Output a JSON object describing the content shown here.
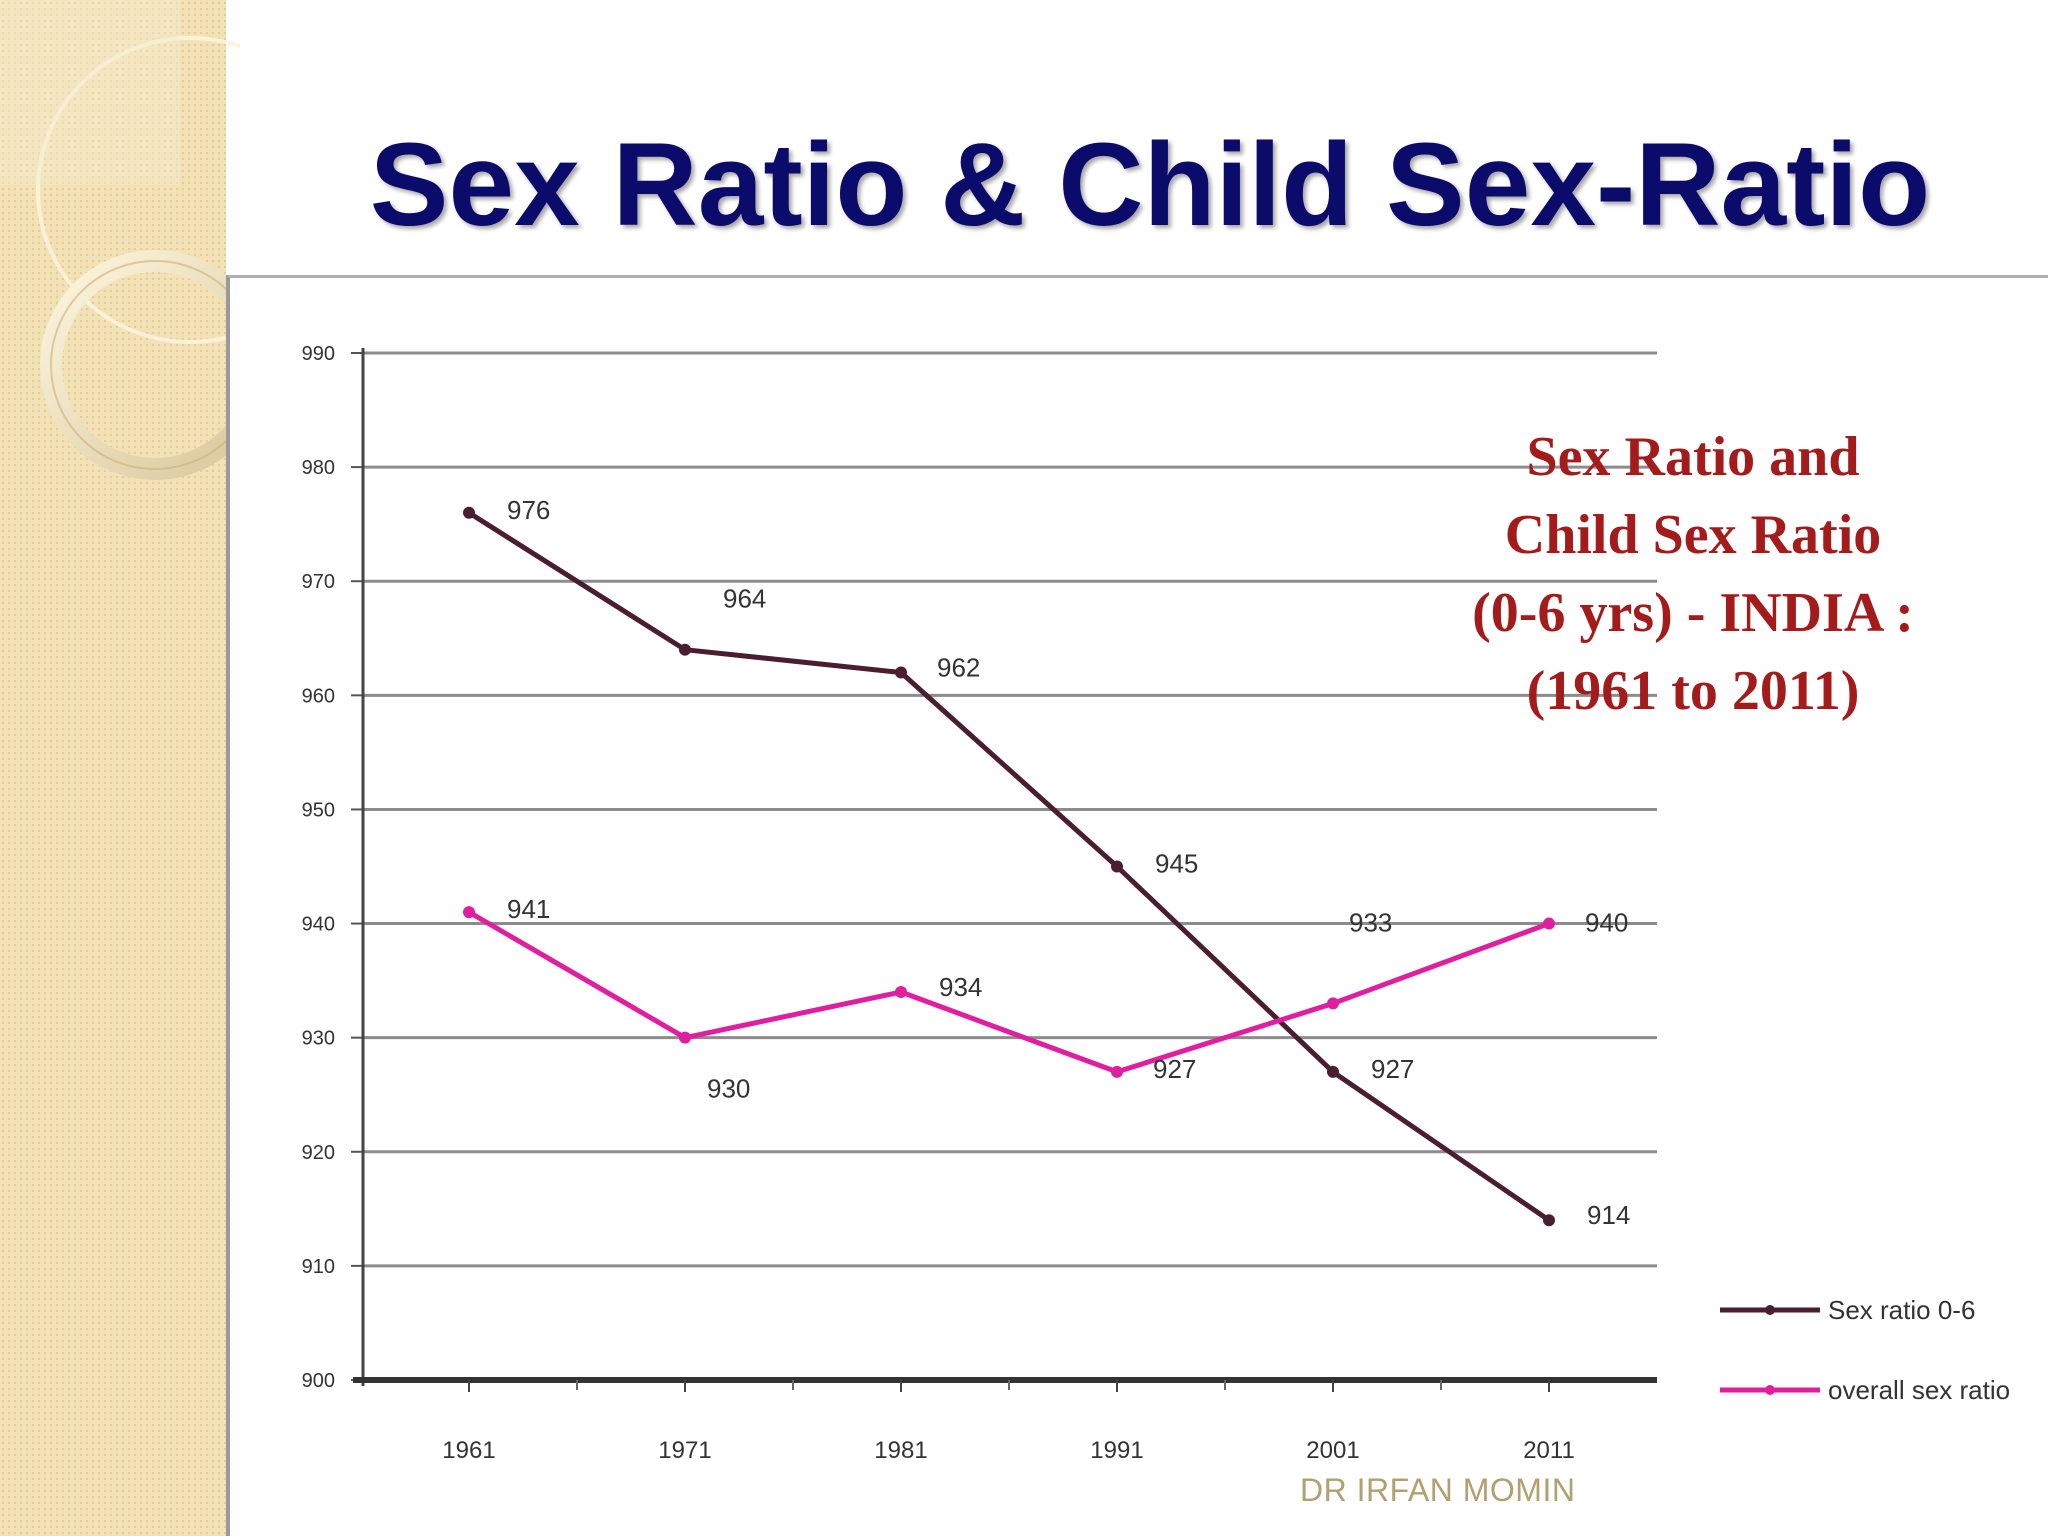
{
  "slide": {
    "title": "Sex Ratio & Child Sex-Ratio",
    "footer": "DR IRFAN MOMIN"
  },
  "chart_data": {
    "type": "line",
    "title_lines": [
      "Sex Ratio and",
      "Child Sex Ratio",
      "(0-6 yrs) - INDIA :",
      "(1961 to 2011)"
    ],
    "categories": [
      "1961",
      "1971",
      "1981",
      "1991",
      "2001",
      "2011"
    ],
    "ylim": [
      900,
      990
    ],
    "yticks": [
      "900",
      "910",
      "920",
      "930",
      "940",
      "950",
      "960",
      "970",
      "980",
      "990"
    ],
    "grid": true,
    "legend_position": "bottom-right",
    "series": [
      {
        "name": "Sex ratio 0-6",
        "color": "#4a1e2e",
        "values": [
          976,
          964,
          962,
          945,
          927,
          914
        ],
        "labels": [
          "976",
          "964",
          "962",
          "945",
          "927",
          "914"
        ]
      },
      {
        "name": "overall sex ratio",
        "color": "#e01fa0",
        "values": [
          941,
          930,
          934,
          927,
          933,
          940
        ],
        "labels": [
          "941",
          "930",
          "934",
          "927",
          "933",
          "940"
        ]
      }
    ]
  }
}
